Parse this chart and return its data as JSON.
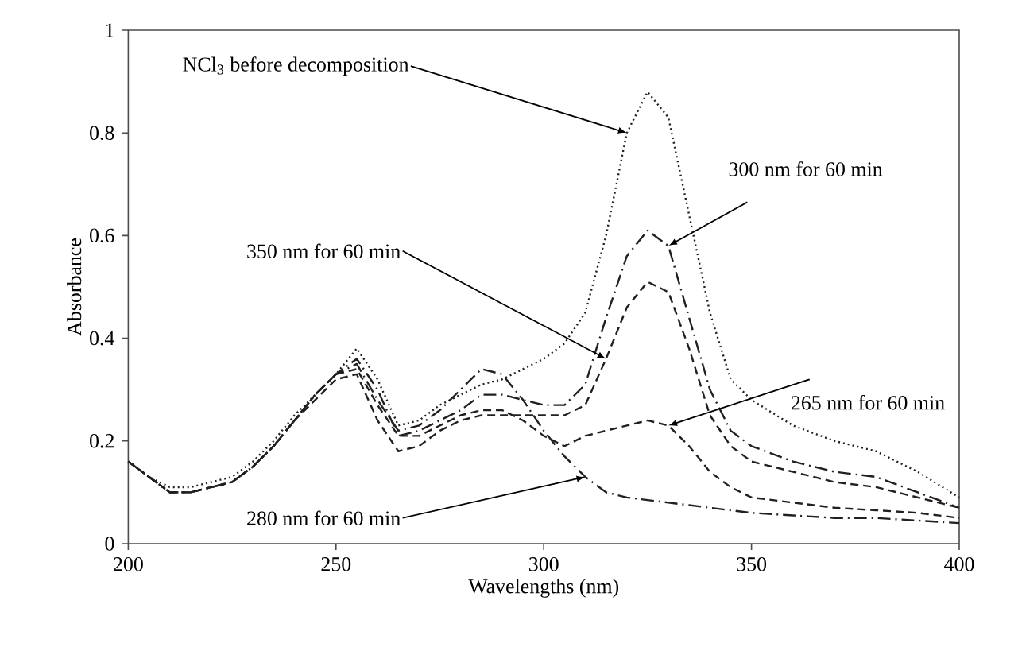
{
  "chart_data": {
    "type": "line",
    "xlabel": "Wavelengths (nm)",
    "ylabel": "Absorbance",
    "xlim": [
      200,
      400
    ],
    "ylim": [
      0,
      1
    ],
    "xticks": [
      200,
      250,
      300,
      350,
      400
    ],
    "yticks": [
      0,
      0.2,
      0.4,
      0.6,
      0.8,
      1
    ],
    "grid": false,
    "marker": "none",
    "x": [
      200,
      205,
      210,
      215,
      220,
      225,
      230,
      235,
      240,
      245,
      250,
      255,
      260,
      265,
      270,
      275,
      280,
      285,
      290,
      295,
      300,
      305,
      310,
      315,
      320,
      325,
      330,
      335,
      340,
      345,
      350,
      360,
      370,
      380,
      390,
      400
    ],
    "series": [
      {
        "color": "#231f20",
        "line_style": "dotted",
        "values": [
          0.16,
          0.13,
          0.11,
          0.11,
          0.12,
          0.13,
          0.16,
          0.2,
          0.25,
          0.29,
          0.33,
          0.38,
          0.32,
          0.23,
          0.24,
          0.27,
          0.29,
          0.31,
          0.32,
          0.34,
          0.36,
          0.39,
          0.45,
          0.6,
          0.8,
          0.88,
          0.83,
          0.64,
          0.45,
          0.32,
          0.28,
          0.23,
          0.2,
          0.18,
          0.14,
          0.09
        ]
      },
      {
        "color": "#231f20",
        "line_style": "dashdot",
        "values": [
          0.16,
          0.13,
          0.1,
          0.1,
          0.11,
          0.12,
          0.15,
          0.19,
          0.24,
          0.29,
          0.33,
          0.36,
          0.3,
          0.21,
          0.22,
          0.24,
          0.26,
          0.29,
          0.29,
          0.28,
          0.27,
          0.27,
          0.31,
          0.44,
          0.56,
          0.61,
          0.58,
          0.44,
          0.3,
          0.22,
          0.19,
          0.16,
          0.14,
          0.13,
          0.1,
          0.07
        ]
      },
      {
        "color": "#231f20",
        "line_style": "dashed",
        "values": [
          0.16,
          0.13,
          0.1,
          0.1,
          0.11,
          0.12,
          0.15,
          0.19,
          0.24,
          0.28,
          0.32,
          0.33,
          0.24,
          0.18,
          0.19,
          0.22,
          0.24,
          0.25,
          0.25,
          0.25,
          0.25,
          0.25,
          0.27,
          0.36,
          0.46,
          0.51,
          0.49,
          0.38,
          0.25,
          0.19,
          0.16,
          0.14,
          0.12,
          0.11,
          0.09,
          0.07
        ]
      },
      {
        "color": "#231f20",
        "line_style": "dashed",
        "values": [
          0.16,
          0.13,
          0.1,
          0.1,
          0.11,
          0.12,
          0.15,
          0.19,
          0.24,
          0.29,
          0.33,
          0.34,
          0.27,
          0.21,
          0.21,
          0.23,
          0.25,
          0.26,
          0.26,
          0.24,
          0.21,
          0.19,
          0.21,
          0.22,
          0.23,
          0.24,
          0.23,
          0.19,
          0.14,
          0.11,
          0.09,
          0.08,
          0.07,
          0.065,
          0.06,
          0.05
        ]
      },
      {
        "color": "#231f20",
        "line_style": "dashdot",
        "values": [
          0.16,
          0.13,
          0.1,
          0.1,
          0.11,
          0.12,
          0.15,
          0.19,
          0.24,
          0.29,
          0.33,
          0.35,
          0.28,
          0.22,
          0.23,
          0.26,
          0.3,
          0.34,
          0.33,
          0.28,
          0.22,
          0.17,
          0.13,
          0.1,
          0.09,
          0.085,
          0.08,
          0.075,
          0.07,
          0.065,
          0.06,
          0.055,
          0.05,
          0.05,
          0.045,
          0.04
        ]
      }
    ],
    "annotations": [
      {
        "text": "NCl$_{3}$ before decomposition",
        "x": 320,
        "y": 0.8
      },
      {
        "text": "300 nm for 60 min",
        "x": 330,
        "y": 0.58
      },
      {
        "text": "350 nm for 60 min",
        "x": 315,
        "y": 0.36
      },
      {
        "text": "265 nm for 60 min",
        "x": 330,
        "y": 0.23
      },
      {
        "text": "280 nm for 60 min",
        "x": 310,
        "y": 0.13
      }
    ]
  }
}
